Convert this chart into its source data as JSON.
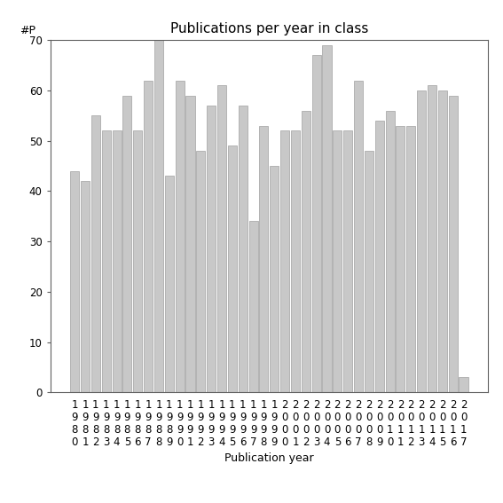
{
  "title": "Publications per year in class",
  "xlabel": "Publication year",
  "ylabel": "#P",
  "years": [
    1980,
    1981,
    1982,
    1983,
    1984,
    1985,
    1986,
    1987,
    1988,
    1989,
    1990,
    1991,
    1992,
    1993,
    1994,
    1995,
    1996,
    1997,
    1998,
    1999,
    2000,
    2001,
    2002,
    2003,
    2004,
    2005,
    2006,
    2007,
    2008,
    2009,
    2010,
    2011,
    2012,
    2013,
    2014,
    2015,
    2016,
    2017
  ],
  "values": [
    44,
    42,
    55,
    52,
    52,
    59,
    52,
    62,
    70,
    43,
    62,
    59,
    48,
    57,
    61,
    49,
    57,
    34,
    53,
    45,
    52,
    52,
    56,
    67,
    69,
    52,
    52,
    62,
    48,
    54,
    56,
    53,
    53,
    60,
    61,
    60,
    59,
    3
  ],
  "bar_color": "#c8c8c8",
  "bar_edgecolor": "#a0a0a0",
  "ylim": [
    0,
    70
  ],
  "yticks": [
    0,
    10,
    20,
    30,
    40,
    50,
    60,
    70
  ],
  "background_color": "#ffffff",
  "title_fontsize": 11,
  "axis_label_fontsize": 9,
  "tick_fontsize": 8.5
}
